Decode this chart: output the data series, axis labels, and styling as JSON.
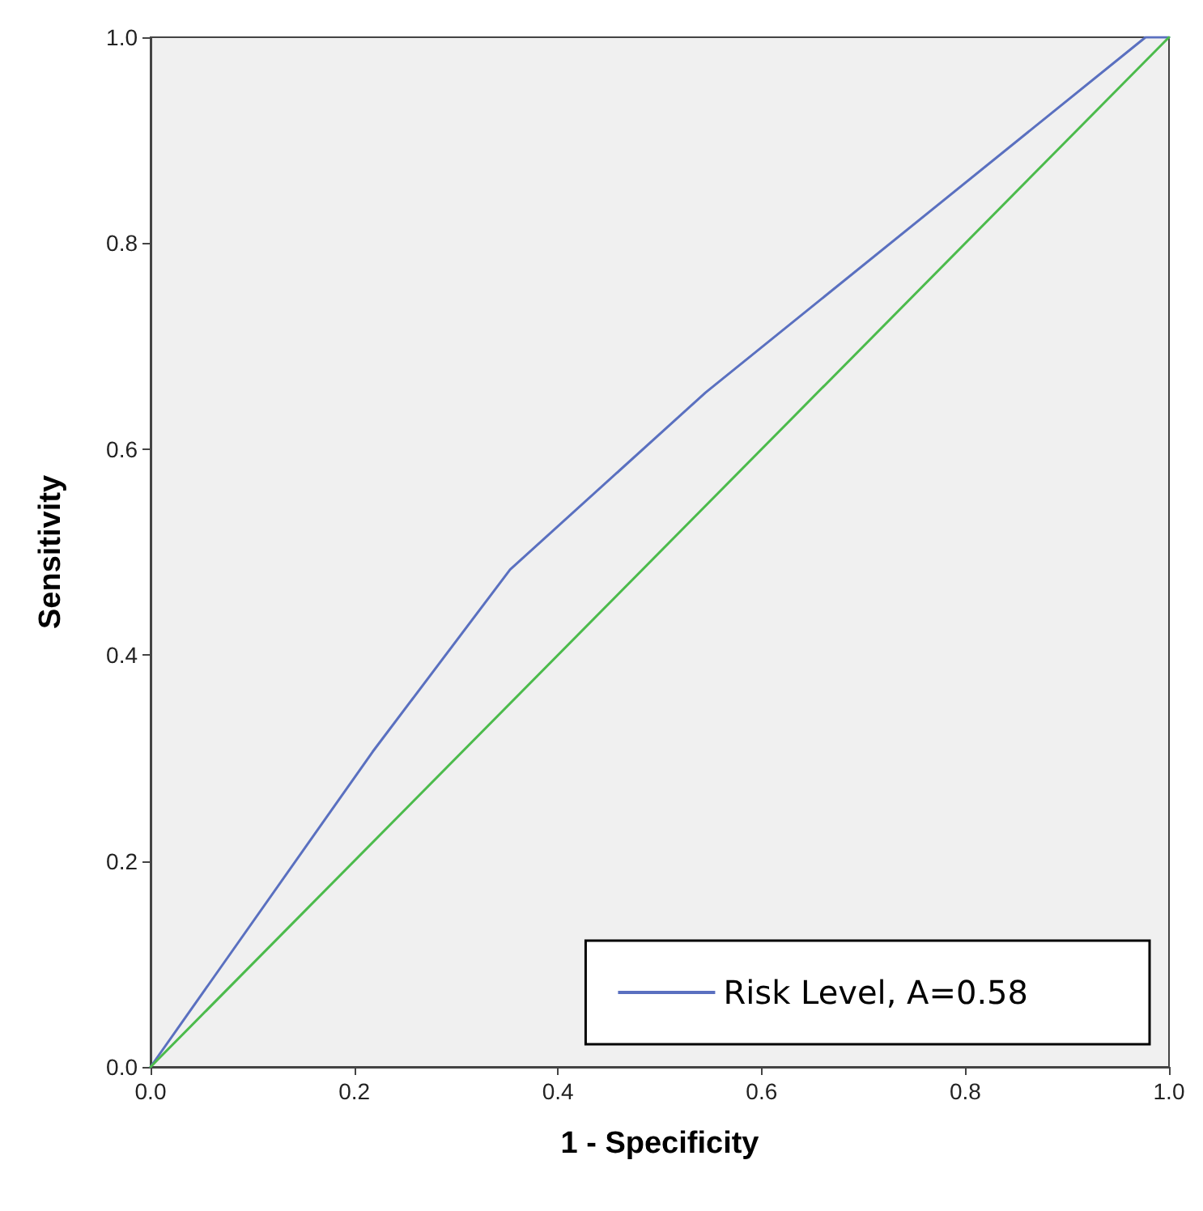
{
  "chart_data": {
    "type": "line",
    "xlabel": "1 - Specificity",
    "ylabel": "Sensitivity",
    "xlim": [
      0,
      1
    ],
    "ylim": [
      0,
      1
    ],
    "xticks": [
      {
        "value": 0,
        "label": "0.0"
      },
      {
        "value": 0.2,
        "label": "0.2"
      },
      {
        "value": 0.4,
        "label": "0.4"
      },
      {
        "value": 0.6,
        "label": "0.6"
      },
      {
        "value": 0.8,
        "label": "0.8"
      },
      {
        "value": 1,
        "label": "1.0"
      }
    ],
    "yticks": [
      {
        "value": 0,
        "label": "0.0"
      },
      {
        "value": 0.2,
        "label": "0.2"
      },
      {
        "value": 0.4,
        "label": "0.4"
      },
      {
        "value": 0.6,
        "label": "0.6"
      },
      {
        "value": 0.8,
        "label": "0.8"
      },
      {
        "value": 1,
        "label": "1.0"
      }
    ],
    "grid": false,
    "legend": "bottom right",
    "marker": "none",
    "line_style": "solid",
    "series": [
      {
        "name": "Risk Level, A=0.58",
        "color": "#5a70c0",
        "x": [
          0,
          0.218,
          0.353,
          0.545,
          0.977,
          1
        ],
        "values": [
          0,
          0.306,
          0.483,
          0.655,
          1,
          1
        ]
      },
      {
        "color": "#4cbb4c",
        "x": [
          0,
          1
        ],
        "values": [
          0,
          1
        ]
      }
    ]
  }
}
